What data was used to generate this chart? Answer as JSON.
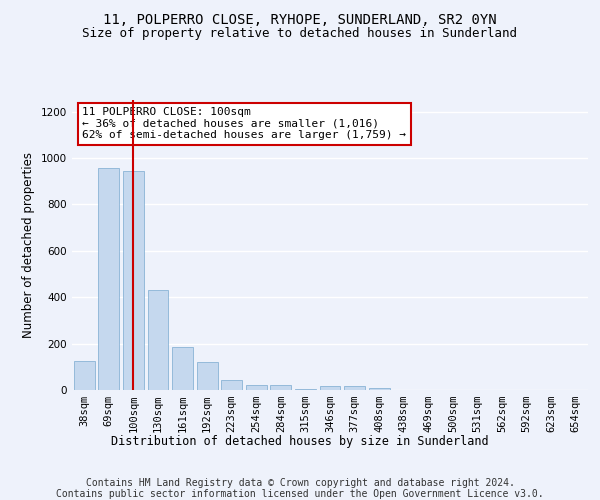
{
  "title": "11, POLPERRO CLOSE, RYHOPE, SUNDERLAND, SR2 0YN",
  "subtitle": "Size of property relative to detached houses in Sunderland",
  "xlabel": "Distribution of detached houses by size in Sunderland",
  "ylabel": "Number of detached properties",
  "categories": [
    "38sqm",
    "69sqm",
    "100sqm",
    "130sqm",
    "161sqm",
    "192sqm",
    "223sqm",
    "254sqm",
    "284sqm",
    "315sqm",
    "346sqm",
    "377sqm",
    "408sqm",
    "438sqm",
    "469sqm",
    "500sqm",
    "531sqm",
    "562sqm",
    "592sqm",
    "623sqm",
    "654sqm"
  ],
  "values": [
    125,
    955,
    945,
    430,
    185,
    120,
    45,
    22,
    20,
    5,
    18,
    18,
    10,
    2,
    0,
    0,
    2,
    0,
    0,
    2,
    0
  ],
  "bar_color": "#c5d8ee",
  "bar_edge_color": "#7aaad0",
  "highlight_bar_index": 2,
  "highlight_line_color": "#cc0000",
  "annotation_text": "11 POLPERRO CLOSE: 100sqm\n← 36% of detached houses are smaller (1,016)\n62% of semi-detached houses are larger (1,759) →",
  "annotation_box_color": "#cc0000",
  "ylim": [
    0,
    1250
  ],
  "yticks": [
    0,
    200,
    400,
    600,
    800,
    1000,
    1200
  ],
  "footer_line1": "Contains HM Land Registry data © Crown copyright and database right 2024.",
  "footer_line2": "Contains public sector information licensed under the Open Government Licence v3.0.",
  "background_color": "#eef2fb",
  "grid_color": "#ffffff",
  "title_fontsize": 10,
  "subtitle_fontsize": 9,
  "axis_label_fontsize": 8.5,
  "tick_fontsize": 7.5,
  "annotation_fontsize": 8,
  "footer_fontsize": 7
}
